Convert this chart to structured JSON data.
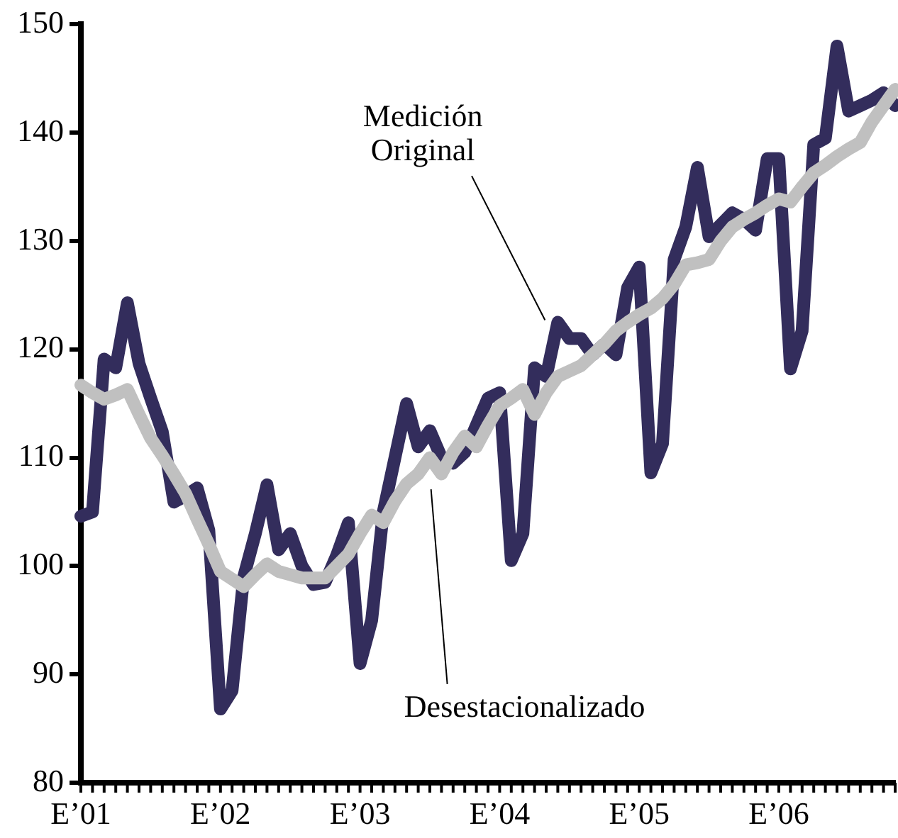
{
  "chart_data": {
    "type": "line",
    "categories": [
      "E’01",
      null,
      null,
      null,
      null,
      null,
      null,
      null,
      null,
      null,
      null,
      null,
      "E’02",
      null,
      null,
      null,
      null,
      null,
      null,
      null,
      null,
      null,
      null,
      null,
      "E’03",
      null,
      null,
      null,
      null,
      null,
      null,
      null,
      null,
      null,
      null,
      null,
      "E’04",
      null,
      null,
      null,
      null,
      null,
      null,
      null,
      null,
      null,
      null,
      null,
      "E’05",
      null,
      null,
      null,
      null,
      null,
      null,
      null,
      null,
      null,
      null,
      null,
      "E’06",
      null,
      null,
      null,
      null,
      null,
      null,
      null,
      null,
      null,
      null
    ],
    "series": [
      {
        "color": "#332d5c",
        "values": [
          104.6,
          105,
          119.1,
          118.3,
          124.3,
          118.7,
          115.5,
          112.4,
          105.9,
          106.5,
          107.2,
          103.3,
          86.8,
          88.5,
          99,
          103,
          107.5,
          101.5,
          103,
          100,
          98.3,
          98.5,
          101,
          104,
          91,
          95,
          105,
          110,
          115,
          111,
          112.5,
          110,
          109.5,
          110.5,
          113,
          115.5,
          116,
          100.5,
          103,
          118.3,
          117.5,
          122.5,
          121,
          121,
          119.5,
          120.5,
          119.5,
          125.7,
          127.6,
          108.6,
          111.3,
          128.3,
          131.3,
          136.8,
          130.4,
          131.5,
          132.6,
          132,
          131,
          137.6,
          137.6,
          118.2,
          121.7,
          138.9,
          139.5,
          148,
          142,
          142.5,
          143,
          143.7,
          142.5
        ]
      },
      {
        "color": "#c0c0c0",
        "values": [
          116.7,
          116,
          115.4,
          115.8,
          116.3,
          114,
          111.8,
          110.2,
          108.5,
          106.7,
          104.3,
          102,
          99.5,
          98.8,
          98.1,
          99.2,
          100.2,
          99.5,
          99.2,
          98.9,
          98.9,
          98.9,
          100,
          101.1,
          103,
          104.7,
          104,
          106,
          107.6,
          108.5,
          110,
          108.5,
          110.5,
          112,
          111,
          113,
          114.8,
          115.5,
          116.3,
          114,
          116,
          117.5,
          118,
          118.5,
          119.5,
          120.5,
          121.7,
          122.5,
          123.2,
          123.8,
          124.7,
          126,
          127.8,
          128,
          128.3,
          130,
          131.3,
          132,
          132.6,
          133.3,
          133.9,
          133.6,
          135,
          136.3,
          137,
          137.8,
          138.5,
          139.1,
          141,
          142.5,
          144
        ]
      }
    ],
    "ylim": [
      80,
      150
    ],
    "yticks": [
      80,
      90,
      100,
      110,
      120,
      130,
      140,
      150
    ],
    "annotations": [
      "Medición\nOriginal",
      "Desestacionalizado"
    ],
    "grid": false,
    "legend": false,
    "marker": "none",
    "line_style": "solid"
  }
}
